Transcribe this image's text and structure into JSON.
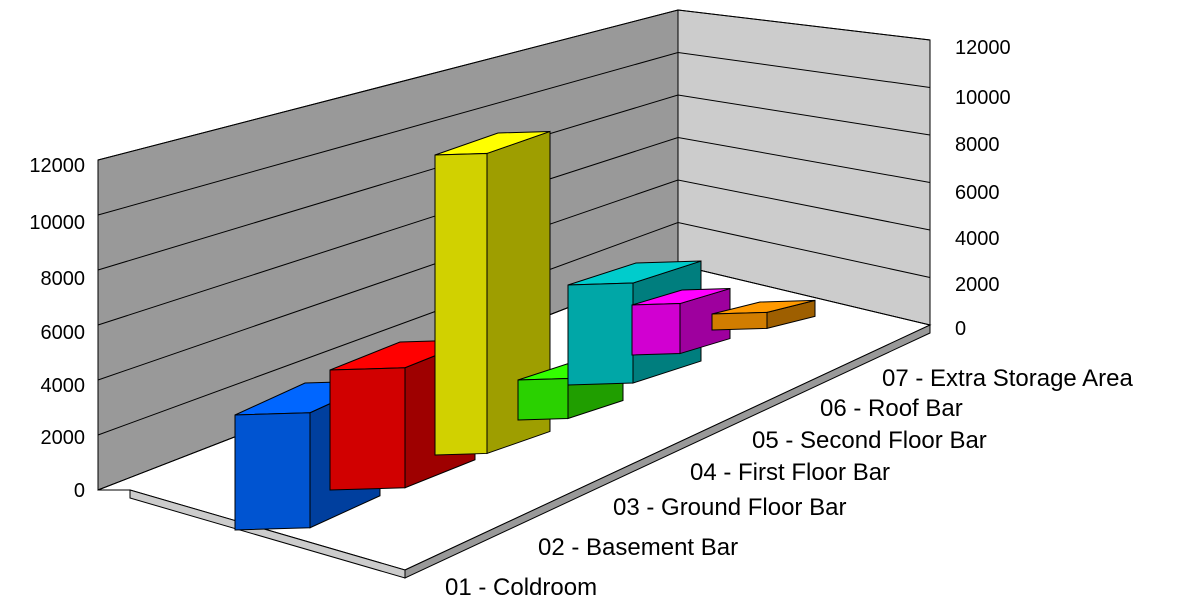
{
  "chart_data": {
    "type": "bar",
    "categories": [
      "01 - Coldroom",
      "02 - Basement Bar",
      "03 - Ground Floor Bar",
      "04 - First Floor Bar",
      "05 - Second Floor Bar",
      "06 - Roof Bar",
      "07 - Extra Storage Area"
    ],
    "values": [
      2900,
      3050,
      10700,
      850,
      3200,
      1150,
      300
    ],
    "colors": [
      "#0066ff",
      "#ff0000",
      "#ffff00",
      "#33ff00",
      "#00cccc",
      "#ff00ff",
      "#ff9900"
    ],
    "yticks": [
      "0",
      "2000",
      "4000",
      "6000",
      "8000",
      "10000",
      "12000"
    ],
    "ylim": [
      0,
      12000
    ],
    "grid": true,
    "legend": "none",
    "view": "3d-perspective"
  }
}
